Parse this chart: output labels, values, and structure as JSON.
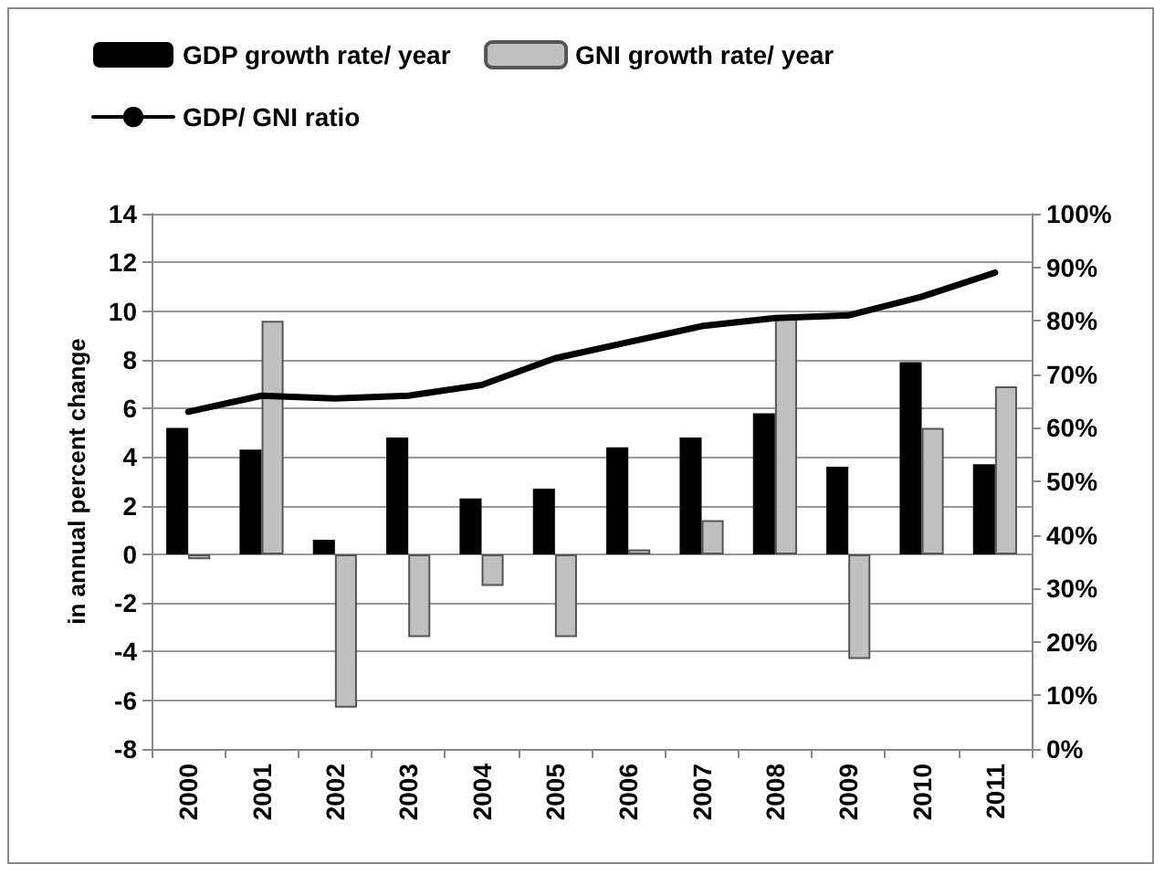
{
  "chart_data": {
    "type": "bar",
    "ylabel": "in annual percent change",
    "categories": [
      "2000",
      "2001",
      "2002",
      "2003",
      "2004",
      "2005",
      "2006",
      "2007",
      "2008",
      "2009",
      "2010",
      "2011"
    ],
    "series": [
      {
        "name": "GDP growth rate/ year",
        "color": "#000000",
        "values": [
          5.2,
          4.3,
          0.6,
          4.8,
          2.3,
          2.7,
          4.4,
          4.8,
          5.8,
          3.6,
          7.9,
          3.7
        ]
      },
      {
        "name": "GNI growth rate/ year",
        "color": "#c0c0c0",
        "values": [
          -0.2,
          9.6,
          -6.3,
          -3.4,
          -1.3,
          -3.4,
          0.2,
          1.4,
          9.8,
          -4.3,
          5.2,
          6.9
        ]
      },
      {
        "name": "GDP/ GNI ratio",
        "type": "line",
        "axis": "y2",
        "color": "#000000",
        "values": [
          63,
          66,
          65.5,
          66,
          68,
          73,
          76,
          79,
          80.5,
          81,
          84.5,
          89
        ]
      }
    ],
    "ylim": [
      -8,
      14
    ],
    "yticks": [
      -8,
      -6,
      -4,
      -2,
      0,
      2,
      4,
      6,
      8,
      10,
      12,
      14
    ],
    "y2lim": [
      0,
      100
    ],
    "y2ticks": [
      {
        "value": 0,
        "label": "0%"
      },
      {
        "value": 10,
        "label": "10%"
      },
      {
        "value": 20,
        "label": "20%"
      },
      {
        "value": 30,
        "label": "30%"
      },
      {
        "value": 40,
        "label": "40%"
      },
      {
        "value": 50,
        "label": "50%"
      },
      {
        "value": 60,
        "label": "60%"
      },
      {
        "value": 70,
        "label": "70%"
      },
      {
        "value": 80,
        "label": "80%"
      },
      {
        "value": 90,
        "label": "90%"
      },
      {
        "value": 100,
        "label": "100%"
      }
    ],
    "grid": "y",
    "legend": "top",
    "marker": "none",
    "line_style": "solid"
  }
}
